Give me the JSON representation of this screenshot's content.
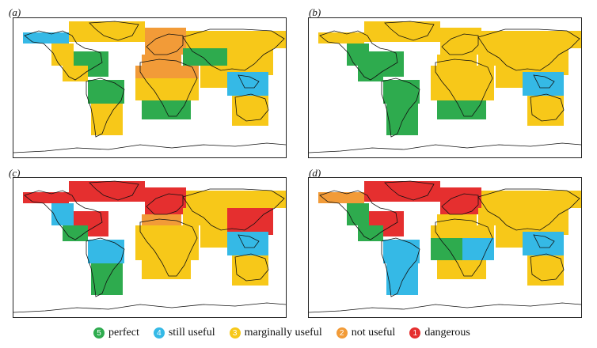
{
  "colors": {
    "perfect": "#2eab4e",
    "still_useful": "#35b9e6",
    "marginally_useful": "#f7c819",
    "not_useful": "#f29b38",
    "dangerous": "#e52f2f"
  },
  "panels": [
    {
      "label": "(a)",
      "regions": [
        {
          "id": "alaska",
          "level": "still_useful"
        },
        {
          "id": "greenland-arctic",
          "level": "marginally_useful"
        },
        {
          "id": "west-north-america",
          "level": "marginally_useful"
        },
        {
          "id": "east-north-america",
          "level": "perfect"
        },
        {
          "id": "central-america",
          "level": "marginally_useful"
        },
        {
          "id": "amazon",
          "level": "perfect"
        },
        {
          "id": "south-america",
          "level": "marginally_useful"
        },
        {
          "id": "northern-europe",
          "level": "not_useful"
        },
        {
          "id": "mediterranean",
          "level": "not_useful"
        },
        {
          "id": "sahara",
          "level": "not_useful"
        },
        {
          "id": "west-africa",
          "level": "marginally_useful"
        },
        {
          "id": "east-africa",
          "level": "marginally_useful"
        },
        {
          "id": "southern-africa",
          "level": "perfect"
        },
        {
          "id": "central-asia",
          "level": "perfect"
        },
        {
          "id": "north-asia",
          "level": "marginally_useful"
        },
        {
          "id": "tibet-east-asia",
          "level": "marginally_useful"
        },
        {
          "id": "south-asia",
          "level": "marginally_useful"
        },
        {
          "id": "southeast-asia",
          "level": "still_useful"
        },
        {
          "id": "north-australia",
          "level": "marginally_useful"
        },
        {
          "id": "south-australia",
          "level": "marginally_useful"
        }
      ]
    },
    {
      "label": "(b)",
      "regions": [
        {
          "id": "alaska",
          "level": "marginally_useful"
        },
        {
          "id": "greenland-arctic",
          "level": "marginally_useful"
        },
        {
          "id": "west-north-america",
          "level": "perfect"
        },
        {
          "id": "east-north-america",
          "level": "perfect"
        },
        {
          "id": "central-america",
          "level": "perfect"
        },
        {
          "id": "amazon",
          "level": "perfect"
        },
        {
          "id": "south-america",
          "level": "perfect"
        },
        {
          "id": "northern-europe",
          "level": "marginally_useful"
        },
        {
          "id": "mediterranean",
          "level": "marginally_useful"
        },
        {
          "id": "sahara",
          "level": "marginally_useful"
        },
        {
          "id": "west-africa",
          "level": "marginally_useful"
        },
        {
          "id": "east-africa",
          "level": "marginally_useful"
        },
        {
          "id": "southern-africa",
          "level": "perfect"
        },
        {
          "id": "central-asia",
          "level": "marginally_useful"
        },
        {
          "id": "north-asia",
          "level": "marginally_useful"
        },
        {
          "id": "tibet-east-asia",
          "level": "marginally_useful"
        },
        {
          "id": "south-asia",
          "level": "marginally_useful"
        },
        {
          "id": "southeast-asia",
          "level": "still_useful"
        },
        {
          "id": "north-australia",
          "level": "marginally_useful"
        },
        {
          "id": "south-australia",
          "level": "marginally_useful"
        }
      ]
    },
    {
      "label": "(c)",
      "regions": [
        {
          "id": "alaska",
          "level": "dangerous"
        },
        {
          "id": "greenland-arctic",
          "level": "dangerous"
        },
        {
          "id": "west-north-america",
          "level": "still_useful"
        },
        {
          "id": "east-north-america",
          "level": "dangerous"
        },
        {
          "id": "central-america",
          "level": "perfect"
        },
        {
          "id": "amazon",
          "level": "still_useful"
        },
        {
          "id": "south-america",
          "level": "perfect"
        },
        {
          "id": "northern-europe",
          "level": "dangerous"
        },
        {
          "id": "mediterranean",
          "level": "not_useful"
        },
        {
          "id": "sahara",
          "level": "marginally_useful"
        },
        {
          "id": "west-africa",
          "level": "marginally_useful"
        },
        {
          "id": "east-africa",
          "level": "marginally_useful"
        },
        {
          "id": "southern-africa",
          "level": "marginally_useful"
        },
        {
          "id": "central-asia",
          "level": "marginally_useful"
        },
        {
          "id": "north-asia",
          "level": "marginally_useful"
        },
        {
          "id": "tibet-east-asia",
          "level": "dangerous"
        },
        {
          "id": "south-asia",
          "level": "marginally_useful"
        },
        {
          "id": "southeast-asia",
          "level": "still_useful"
        },
        {
          "id": "north-australia",
          "level": "marginally_useful"
        },
        {
          "id": "south-australia",
          "level": "marginally_useful"
        }
      ]
    },
    {
      "label": "(d)",
      "regions": [
        {
          "id": "alaska",
          "level": "not_useful"
        },
        {
          "id": "greenland-arctic",
          "level": "dangerous"
        },
        {
          "id": "west-north-america",
          "level": "perfect"
        },
        {
          "id": "east-north-america",
          "level": "dangerous"
        },
        {
          "id": "central-america",
          "level": "perfect"
        },
        {
          "id": "amazon",
          "level": "still_useful"
        },
        {
          "id": "south-america",
          "level": "still_useful"
        },
        {
          "id": "northern-europe",
          "level": "dangerous"
        },
        {
          "id": "mediterranean",
          "level": "marginally_useful"
        },
        {
          "id": "sahara",
          "level": "marginally_useful"
        },
        {
          "id": "west-africa",
          "level": "perfect"
        },
        {
          "id": "east-africa",
          "level": "still_useful"
        },
        {
          "id": "southern-africa",
          "level": "marginally_useful"
        },
        {
          "id": "central-asia",
          "level": "marginally_useful"
        },
        {
          "id": "north-asia",
          "level": "marginally_useful"
        },
        {
          "id": "tibet-east-asia",
          "level": "marginally_useful"
        },
        {
          "id": "south-asia",
          "level": "marginally_useful"
        },
        {
          "id": "southeast-asia",
          "level": "still_useful"
        },
        {
          "id": "north-australia",
          "level": "marginally_useful"
        },
        {
          "id": "south-australia",
          "level": "marginally_useful"
        }
      ]
    }
  ],
  "legend": [
    {
      "num": "5",
      "label": "perfect",
      "level": "perfect"
    },
    {
      "num": "4",
      "label": "still useful",
      "level": "still_useful"
    },
    {
      "num": "3",
      "label": "marginally useful",
      "level": "marginally_useful"
    },
    {
      "num": "2",
      "label": "not useful",
      "level": "not_useful"
    },
    {
      "num": "1",
      "label": "dangerous",
      "level": "dangerous"
    }
  ]
}
